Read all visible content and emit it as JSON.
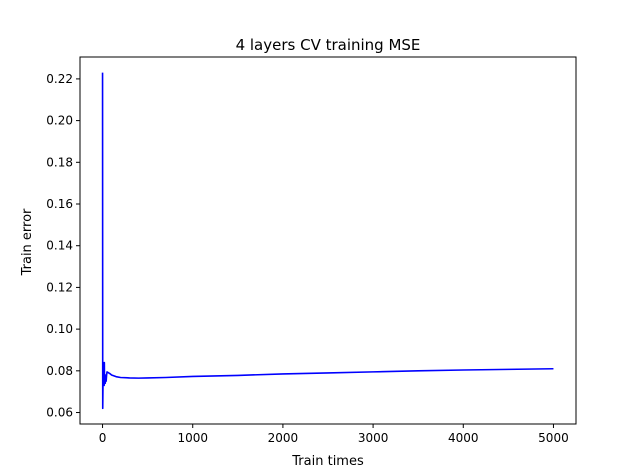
{
  "chart_data": {
    "type": "line",
    "title": "4 layers CV training MSE",
    "xlabel": "Train times",
    "ylabel": "Train error",
    "xlim": [
      -250,
      5250
    ],
    "ylim": [
      0.0545,
      0.2305
    ],
    "xticks": [
      0,
      1000,
      2000,
      3000,
      4000,
      5000
    ],
    "xtick_labels": [
      "0",
      "1000",
      "2000",
      "3000",
      "4000",
      "5000"
    ],
    "yticks": [
      0.06,
      0.08,
      0.1,
      0.12,
      0.14,
      0.16,
      0.18,
      0.2,
      0.22
    ],
    "ytick_labels": [
      "0.06",
      "0.08",
      "0.10",
      "0.12",
      "0.14",
      "0.16",
      "0.18",
      "0.20",
      "0.22"
    ],
    "grid": false,
    "line_color": "#0000ff",
    "series": [
      {
        "x": [
          0,
          2,
          4,
          6,
          8,
          10,
          12,
          15,
          18,
          20,
          22,
          25,
          30,
          35,
          40,
          45,
          50,
          60,
          80,
          100,
          150,
          200,
          300,
          400,
          500,
          700,
          1000,
          1500,
          2000,
          2500,
          3000,
          3500,
          4000,
          4500,
          5000
        ],
        "y": [
          0.223,
          0.062,
          0.07,
          0.076,
          0.073,
          0.084,
          0.074,
          0.08,
          0.073,
          0.084,
          0.074,
          0.077,
          0.074,
          0.078,
          0.075,
          0.078,
          0.0795,
          0.0792,
          0.0787,
          0.078,
          0.0772,
          0.0768,
          0.0766,
          0.0765,
          0.0766,
          0.0768,
          0.0773,
          0.0778,
          0.0785,
          0.079,
          0.0795,
          0.08,
          0.0804,
          0.0807,
          0.081
        ]
      }
    ]
  }
}
